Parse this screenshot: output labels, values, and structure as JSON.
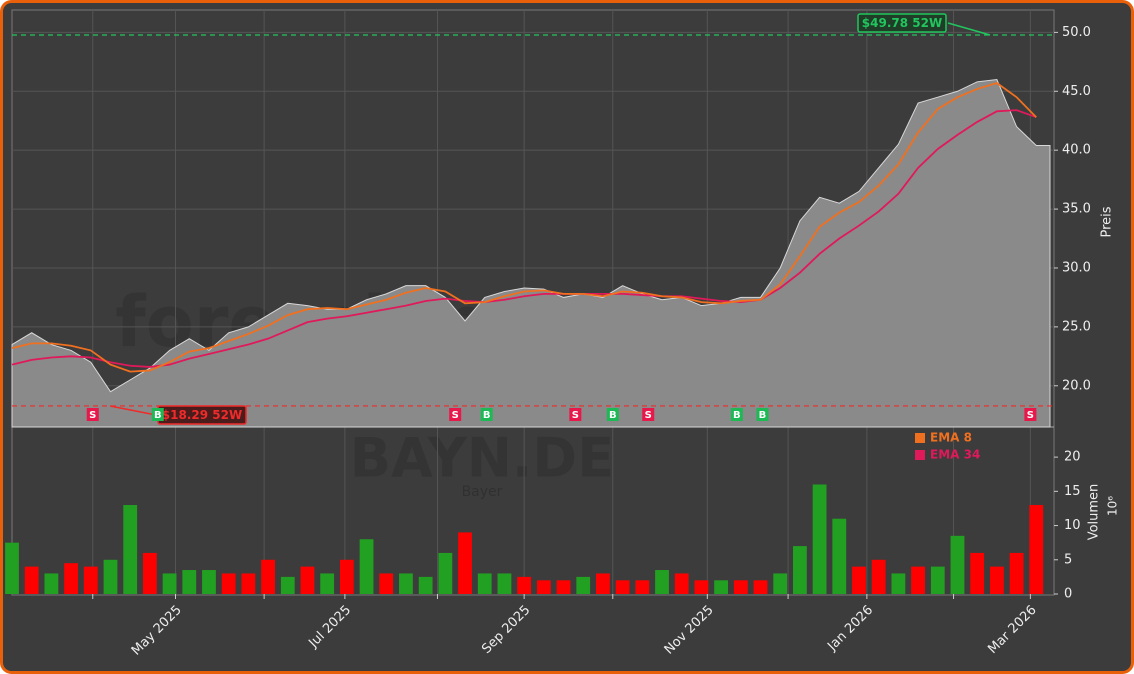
{
  "chart_data": [
    {
      "type": "area",
      "ylabel": "Preis",
      "x": [
        0,
        1,
        2,
        3,
        4,
        5,
        6,
        7,
        8,
        9,
        10,
        11,
        12,
        13,
        14,
        15,
        16,
        17,
        18,
        19,
        20,
        21,
        22,
        23,
        24,
        25,
        26,
        27,
        28,
        29,
        30,
        31,
        32,
        33,
        34,
        35,
        36,
        37,
        38,
        39,
        40,
        41,
        42,
        43,
        44,
        45,
        46,
        47,
        48,
        49,
        50,
        51,
        52
      ],
      "series": [
        {
          "name": "Preis",
          "color": "#8a8a8a",
          "values": [
            23.5,
            24.5,
            23.5,
            23,
            22,
            19.5,
            20.5,
            21.5,
            23,
            24,
            23,
            24.5,
            25,
            26,
            27,
            26.8,
            26.5,
            26.5,
            27.3,
            27.8,
            28.5,
            28.5,
            27.5,
            25.5,
            27.5,
            28,
            28.3,
            28.2,
            27.5,
            27.8,
            27.5,
            28.5,
            27.8,
            27.3,
            27.5,
            26.8,
            27,
            27.5,
            27.5,
            30,
            34,
            36,
            35.5,
            36.5,
            38.5,
            40.5,
            44,
            44.5,
            45,
            45.8,
            46,
            42,
            40.4
          ]
        },
        {
          "name": "EMA 8",
          "color": "#f07020",
          "values": [
            23.2,
            23.6,
            23.6,
            23.4,
            23.0,
            21.8,
            21.2,
            21.3,
            22.0,
            22.9,
            23.2,
            23.8,
            24.4,
            25.1,
            26.0,
            26.5,
            26.6,
            26.5,
            26.9,
            27.3,
            27.9,
            28.3,
            28.0,
            27.0,
            27.1,
            27.6,
            28.0,
            28.1,
            27.8,
            27.8,
            27.6,
            28.0,
            27.9,
            27.6,
            27.5,
            27.1,
            27.0,
            27.2,
            27.3,
            28.6,
            31.0,
            33.5,
            34.7,
            35.6,
            37.0,
            38.8,
            41.5,
            43.5,
            44.5,
            45.2,
            45.7,
            44.5,
            42.8
          ]
        },
        {
          "name": "EMA 34",
          "color": "#e0195a",
          "values": [
            21.8,
            22.2,
            22.4,
            22.5,
            22.4,
            22.0,
            21.7,
            21.6,
            21.8,
            22.3,
            22.7,
            23.1,
            23.5,
            24.0,
            24.7,
            25.4,
            25.7,
            25.9,
            26.2,
            26.5,
            26.8,
            27.2,
            27.4,
            27.2,
            27.1,
            27.3,
            27.6,
            27.8,
            27.8,
            27.8,
            27.8,
            27.8,
            27.7,
            27.6,
            27.6,
            27.4,
            27.2,
            27.1,
            27.3,
            28.3,
            29.6,
            31.2,
            32.5,
            33.6,
            34.8,
            36.3,
            38.5,
            40.1,
            41.3,
            42.4,
            43.3,
            43.4,
            42.8
          ]
        }
      ],
      "ylim": [
        16.5,
        51.9
      ],
      "yticks": [
        {
          "value": 20,
          "label": "20.0"
        },
        {
          "value": 25,
          "label": "25.0"
        },
        {
          "value": 30,
          "label": "30.0"
        },
        {
          "value": 35,
          "label": "35.0"
        },
        {
          "value": 40,
          "label": "40.0"
        },
        {
          "value": 45,
          "label": "45.0"
        },
        {
          "value": 50,
          "label": "50.0"
        }
      ],
      "high": {
        "value": 49.78,
        "label": "$49.78 52W",
        "color": "#22c55e"
      },
      "low": {
        "value": 18.29,
        "label": "$18.29 52W",
        "color": "#ef2b2b"
      },
      "signals": {
        "labels": [
          "S",
          "B",
          "S",
          "B",
          "S",
          "B",
          "S",
          "B",
          "B",
          "S"
        ],
        "x": [
          4.1,
          7.4,
          22.5,
          24.1,
          28.6,
          30.5,
          32.3,
          36.8,
          38.1,
          51.7
        ]
      },
      "signal_colors": {
        "S": "#e8194a",
        "B": "#1db954"
      },
      "watermark": "forexsignale.trade"
    },
    {
      "type": "bar",
      "ylabel": "Volumen",
      "unit": "10⁶",
      "symbol": "BAYN.DE",
      "name": "Bayer",
      "values": [
        7.5,
        4,
        3,
        4.5,
        4,
        5,
        13,
        6,
        3,
        3.5,
        3.5,
        3,
        3,
        5,
        2.5,
        4,
        3,
        5,
        8,
        3,
        3,
        2.5,
        6,
        9,
        3,
        3,
        2.5,
        2,
        2,
        2.5,
        3,
        2,
        2,
        3.5,
        3,
        2,
        2,
        2,
        2,
        3,
        7,
        16,
        11,
        4,
        5,
        3,
        4,
        4,
        8.5,
        6,
        4,
        6,
        13
      ],
      "bar_colors": [
        "#22a022",
        "#ff0000",
        "#22a022",
        "#ff0000",
        "#ff0000",
        "#22a022",
        "#22a022",
        "#ff0000",
        "#22a022",
        "#22a022",
        "#22a022",
        "#ff0000",
        "#ff0000",
        "#ff0000",
        "#22a022",
        "#ff0000",
        "#22a022",
        "#ff0000",
        "#22a022",
        "#ff0000",
        "#22a022",
        "#22a022",
        "#22a022",
        "#ff0000",
        "#22a022",
        "#22a022",
        "#ff0000",
        "#ff0000",
        "#ff0000",
        "#22a022",
        "#ff0000",
        "#ff0000",
        "#ff0000",
        "#22a022",
        "#ff0000",
        "#ff0000",
        "#22a022",
        "#ff0000",
        "#ff0000",
        "#22a022",
        "#22a022",
        "#22a022",
        "#22a022",
        "#ff0000",
        "#ff0000",
        "#22a022",
        "#ff0000",
        "#22a022",
        "#22a022",
        "#ff0000",
        "#ff0000",
        "#ff0000",
        "#ff0000"
      ],
      "ylim": [
        0,
        24.4
      ],
      "yticks": [
        0,
        5,
        10,
        15,
        20
      ],
      "xlim": [
        0,
        52.9
      ],
      "xticks": [
        {
          "value": 4.1,
          "label": null
        },
        {
          "value": 8.3,
          "label": "May 2025"
        },
        {
          "value": 12.8,
          "label": null
        },
        {
          "value": 16.9,
          "label": "Jul 2025"
        },
        {
          "value": 21.6,
          "label": null
        },
        {
          "value": 26.0,
          "label": "Sep 2025"
        },
        {
          "value": 30.5,
          "label": null
        },
        {
          "value": 35.3,
          "label": "Nov 2025"
        },
        {
          "value": 39.4,
          "label": null
        },
        {
          "value": 43.4,
          "label": "Jan 2026"
        },
        {
          "value": 47.8,
          "label": null
        },
        {
          "value": 51.7,
          "label": "Mar 2026"
        }
      ]
    }
  ]
}
